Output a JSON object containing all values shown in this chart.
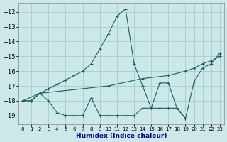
{
  "xlabel": "Humidex (Indice chaleur)",
  "bg_color": "#cce8e8",
  "grid_color": "#aacccc",
  "line_color": "#1a6060",
  "xlim": [
    -0.5,
    23.5
  ],
  "ylim": [
    -19.6,
    -11.4
  ],
  "yticks": [
    -19,
    -18,
    -17,
    -16,
    -15,
    -14,
    -13,
    -12
  ],
  "xticks": [
    0,
    1,
    2,
    3,
    4,
    5,
    6,
    7,
    8,
    9,
    10,
    11,
    12,
    13,
    14,
    15,
    16,
    17,
    18,
    19,
    20,
    21,
    22,
    23
  ],
  "series": [
    {
      "x": [
        0,
        1,
        2,
        3,
        4,
        5,
        6,
        7,
        8,
        9,
        10,
        11,
        12,
        13,
        14
      ],
      "y": [
        -18.0,
        -18.0,
        -17.5,
        -17.2,
        -16.9,
        -16.6,
        -16.3,
        -16.0,
        -15.5,
        -14.5,
        -13.5,
        -12.3,
        -11.8,
        -15.5,
        -17.0
      ]
    },
    {
      "x": [
        0,
        1,
        2,
        3,
        4,
        5,
        6,
        7,
        8,
        9,
        10,
        11,
        12,
        13,
        14,
        15,
        16,
        17,
        18,
        19
      ],
      "y": [
        -18.0,
        -18.0,
        -17.5,
        -18.0,
        -18.8,
        -19.0,
        -19.0,
        -19.0,
        -17.8,
        -19.0,
        -19.0,
        -19.0,
        -19.0,
        -19.0,
        -18.5,
        -18.5,
        -18.5,
        -18.5,
        -18.5,
        -19.2
      ]
    },
    {
      "x": [
        0,
        2,
        10,
        14,
        17,
        19,
        20,
        21,
        22,
        23
      ],
      "y": [
        -18.0,
        -17.5,
        -17.0,
        -16.5,
        -16.3,
        -16.0,
        -15.8,
        -15.5,
        -15.3,
        -15.0
      ]
    },
    {
      "x": [
        14,
        15,
        16,
        17,
        18,
        19,
        20,
        21,
        22,
        23
      ],
      "y": [
        -17.0,
        -18.5,
        -16.8,
        -16.8,
        -18.5,
        -19.2,
        -16.7,
        -15.8,
        -15.5,
        -14.8
      ]
    }
  ]
}
